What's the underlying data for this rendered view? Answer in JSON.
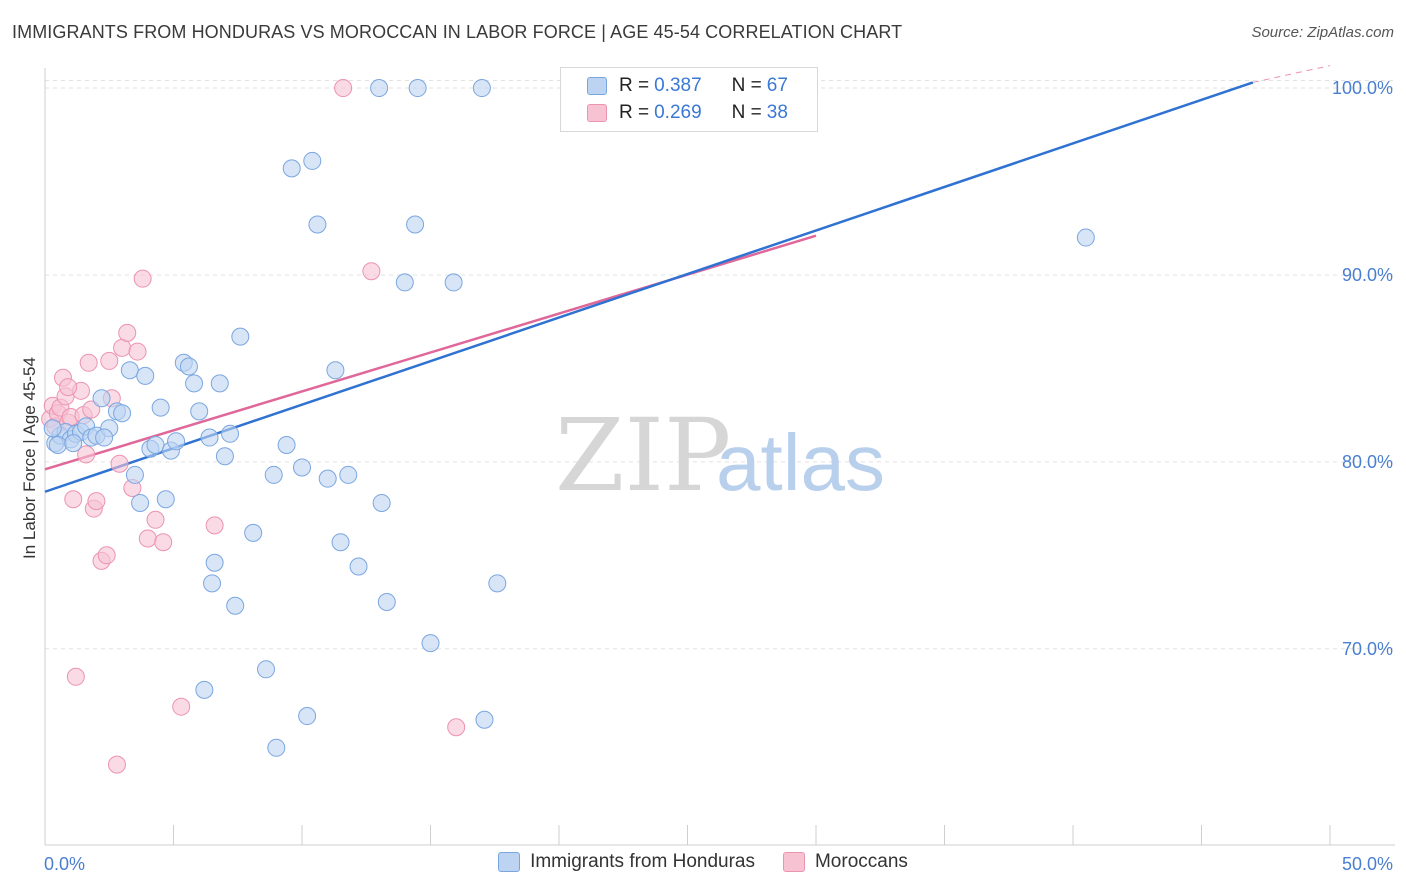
{
  "header": {
    "title": "IMMIGRANTS FROM HONDURAS VS MOROCCAN IN LABOR FORCE | AGE 45-54 CORRELATION CHART",
    "source": "Source: ZipAtlas.com"
  },
  "watermark": {
    "zip": "ZIP",
    "atlas": "atlas"
  },
  "legend": {
    "rows": [
      {
        "r_label": "R =",
        "r_value": "0.387",
        "n_label": "N =",
        "n_value": "67"
      },
      {
        "r_label": "R =",
        "r_value": "0.269",
        "n_label": "N =",
        "n_value": "38"
      }
    ]
  },
  "colors": {
    "blue_fill": "#bcd4f2",
    "blue_stroke": "#7aa6e0",
    "blue_line": "#2f72d2",
    "pink_fill": "#f7c3d3",
    "pink_stroke": "#ec93b0",
    "pink_line": "#e0679a",
    "grid": "#e2e2e2",
    "tick_text": "#4a7fd0"
  },
  "chart_data": {
    "type": "scatter",
    "title": "IMMIGRANTS FROM HONDURAS VS MOROCCAN IN LABOR FORCE | AGE 45-54 CORRELATION CHART",
    "xlabel": "",
    "ylabel": "In Labor Force | Age 45-54",
    "xlim": [
      0,
      50
    ],
    "ylim": [
      59.5,
      101.5
    ],
    "x_tick_labels": [
      "0.0%",
      "50.0%"
    ],
    "y_ticks": [
      70,
      80,
      90,
      100
    ],
    "y_tick_labels": [
      "70.0%",
      "80.0%",
      "90.0%",
      "100.0%"
    ],
    "legend_position": "top-center",
    "series": [
      {
        "name": "Immigrants from Honduras",
        "color": "#bcd4f2",
        "r": 0.387,
        "n": 67,
        "trend": {
          "x": [
            0,
            47
          ],
          "y": [
            78.4,
            100.3
          ],
          "style": "solid"
        },
        "trend_ext": {
          "x": [
            47,
            50
          ],
          "y": [
            100.3,
            101.2
          ],
          "style": "dashed"
        },
        "points": [
          [
            0.4,
            81.0
          ],
          [
            0.6,
            81.4
          ],
          [
            0.8,
            81.6
          ],
          [
            1.0,
            81.2
          ],
          [
            1.2,
            81.5
          ],
          [
            1.4,
            81.6
          ],
          [
            1.6,
            81.9
          ],
          [
            1.8,
            81.3
          ],
          [
            2.0,
            81.4
          ],
          [
            2.5,
            81.8
          ],
          [
            2.2,
            83.4
          ],
          [
            2.8,
            82.7
          ],
          [
            3.0,
            82.6
          ],
          [
            3.3,
            84.9
          ],
          [
            3.5,
            79.3
          ],
          [
            3.7,
            77.8
          ],
          [
            3.9,
            84.6
          ],
          [
            4.1,
            80.7
          ],
          [
            4.3,
            80.9
          ],
          [
            4.5,
            82.9
          ],
          [
            4.7,
            78.0
          ],
          [
            4.9,
            80.6
          ],
          [
            5.1,
            81.1
          ],
          [
            5.4,
            85.3
          ],
          [
            5.6,
            85.1
          ],
          [
            5.8,
            84.2
          ],
          [
            6.0,
            82.7
          ],
          [
            6.2,
            67.8
          ],
          [
            6.4,
            81.3
          ],
          [
            6.6,
            74.6
          ],
          [
            6.8,
            84.2
          ],
          [
            7.0,
            80.3
          ],
          [
            7.2,
            81.5
          ],
          [
            7.4,
            72.3
          ],
          [
            7.6,
            86.7
          ],
          [
            8.1,
            76.2
          ],
          [
            8.6,
            68.9
          ],
          [
            8.9,
            79.3
          ],
          [
            9.0,
            64.7
          ],
          [
            9.4,
            80.9
          ],
          [
            9.6,
            95.7
          ],
          [
            10.0,
            79.7
          ],
          [
            10.2,
            66.4
          ],
          [
            10.4,
            96.1
          ],
          [
            10.6,
            92.7
          ],
          [
            11.0,
            79.1
          ],
          [
            11.3,
            84.9
          ],
          [
            11.5,
            75.7
          ],
          [
            11.8,
            79.3
          ],
          [
            12.2,
            74.4
          ],
          [
            13.0,
            100.0
          ],
          [
            13.1,
            77.8
          ],
          [
            13.3,
            72.5
          ],
          [
            14.0,
            89.6
          ],
          [
            14.4,
            92.7
          ],
          [
            14.5,
            100.0
          ],
          [
            15.0,
            70.3
          ],
          [
            15.9,
            89.6
          ],
          [
            17.0,
            100.0
          ],
          [
            17.1,
            66.2
          ],
          [
            17.6,
            73.5
          ],
          [
            40.5,
            92.0
          ],
          [
            0.3,
            81.8
          ],
          [
            0.5,
            80.9
          ],
          [
            1.1,
            81.0
          ],
          [
            2.3,
            81.3
          ],
          [
            6.5,
            73.5
          ]
        ]
      },
      {
        "name": "Moroccans",
        "color": "#f7c3d3",
        "r": 0.269,
        "n": 38,
        "trend": {
          "x": [
            0,
            30
          ],
          "y": [
            79.6,
            92.1
          ],
          "style": "solid"
        },
        "points": [
          [
            0.2,
            82.3
          ],
          [
            0.3,
            83.0
          ],
          [
            0.4,
            81.9
          ],
          [
            0.5,
            82.6
          ],
          [
            0.6,
            82.9
          ],
          [
            0.7,
            84.5
          ],
          [
            0.8,
            83.5
          ],
          [
            0.9,
            82.1
          ],
          [
            1.0,
            82.4
          ],
          [
            1.1,
            78.0
          ],
          [
            1.2,
            68.5
          ],
          [
            1.4,
            83.8
          ],
          [
            1.5,
            82.5
          ],
          [
            1.6,
            80.4
          ],
          [
            1.7,
            85.3
          ],
          [
            1.8,
            82.8
          ],
          [
            1.9,
            77.5
          ],
          [
            2.0,
            77.9
          ],
          [
            2.2,
            74.7
          ],
          [
            2.4,
            75.0
          ],
          [
            2.5,
            85.4
          ],
          [
            2.6,
            83.4
          ],
          [
            2.8,
            63.8
          ],
          [
            2.9,
            79.9
          ],
          [
            3.0,
            86.1
          ],
          [
            3.2,
            86.9
          ],
          [
            3.4,
            78.6
          ],
          [
            3.6,
            85.9
          ],
          [
            3.8,
            89.8
          ],
          [
            4.0,
            75.9
          ],
          [
            4.3,
            76.9
          ],
          [
            4.6,
            75.7
          ],
          [
            5.3,
            66.9
          ],
          [
            6.6,
            76.6
          ],
          [
            11.6,
            100.0
          ],
          [
            12.7,
            90.2
          ],
          [
            16.0,
            65.8
          ],
          [
            0.9,
            84.0
          ]
        ]
      }
    ]
  },
  "bottom_legend": {
    "items": [
      {
        "label": "Immigrants from Honduras"
      },
      {
        "label": "Moroccans"
      }
    ]
  }
}
